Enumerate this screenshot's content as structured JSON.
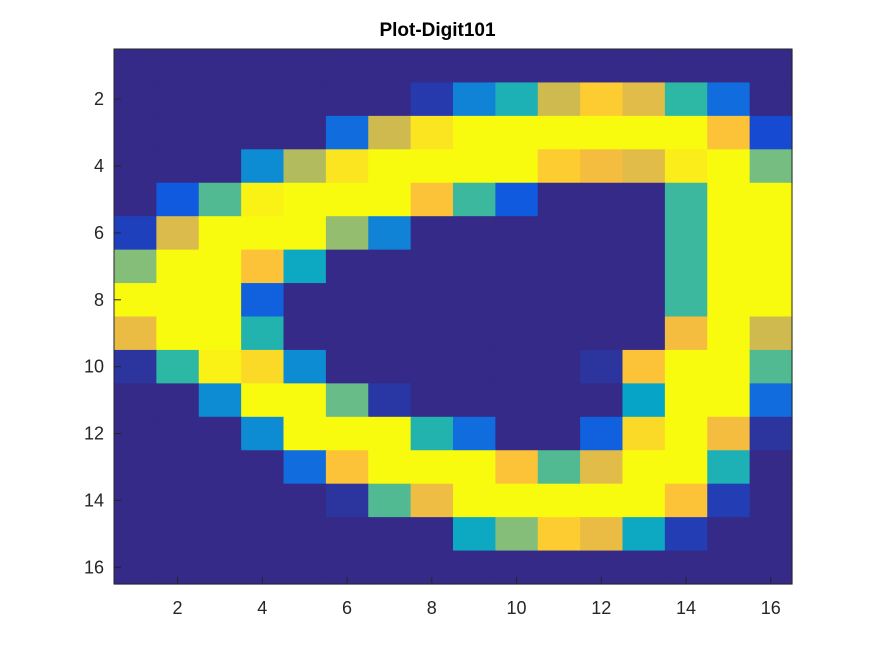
{
  "chart_data": {
    "type": "heatmap",
    "title": "Plot-Digit101",
    "xlabel": "",
    "ylabel": "",
    "rows": 16,
    "cols": 16,
    "x_ticks": [
      "2",
      "4",
      "6",
      "8",
      "10",
      "12",
      "14",
      "16"
    ],
    "y_ticks": [
      "2",
      "4",
      "6",
      "8",
      "10",
      "12",
      "14",
      "16"
    ],
    "xlim": [
      0.5,
      16.5
    ],
    "ylim": [
      0.5,
      16.5
    ],
    "y_direction": "reversed",
    "colormap": "parula",
    "color_range": [
      0,
      1
    ],
    "values": [
      [
        0,
        0,
        0,
        0,
        0,
        0,
        0,
        0,
        0,
        0,
        0,
        0,
        0,
        0,
        0,
        0
      ],
      [
        0,
        0,
        0,
        0,
        0,
        0,
        0,
        0.05,
        0.27,
        0.45,
        0.75,
        0.9,
        0.8,
        0.5,
        0.2,
        0
      ],
      [
        0,
        0,
        0,
        0,
        0,
        0.2,
        0.75,
        0.95,
        1,
        1,
        1,
        1,
        1,
        1,
        0.88,
        0.1
      ],
      [
        0,
        0,
        0,
        0.3,
        0.7,
        0.95,
        1,
        1,
        1,
        1,
        0.9,
        0.85,
        0.8,
        0.97,
        1,
        0.6
      ],
      [
        0,
        0.15,
        0.55,
        0.98,
        1,
        1,
        1,
        0.88,
        0.52,
        0.15,
        0,
        0,
        0,
        0.52,
        1,
        1
      ],
      [
        0.07,
        0.78,
        1,
        1,
        1,
        0.65,
        0.27,
        0,
        0,
        0,
        0,
        0,
        0,
        0.52,
        1,
        1
      ],
      [
        0.62,
        1,
        1,
        0.88,
        0.4,
        0,
        0,
        0,
        0,
        0,
        0,
        0,
        0,
        0.52,
        1,
        1
      ],
      [
        1,
        1,
        1,
        0.17,
        0,
        0,
        0,
        0,
        0,
        0,
        0,
        0,
        0,
        0.52,
        1,
        1
      ],
      [
        0.82,
        1,
        1,
        0.47,
        0,
        0,
        0,
        0,
        0,
        0,
        0,
        0,
        0,
        0.85,
        1,
        0.75
      ],
      [
        0.03,
        0.5,
        0.98,
        0.93,
        0.3,
        0,
        0,
        0,
        0,
        0,
        0,
        0.03,
        0.88,
        1,
        1,
        0.55
      ],
      [
        0,
        0,
        0.3,
        1,
        1,
        0.58,
        0.04,
        0,
        0,
        0,
        0,
        0,
        0.38,
        1,
        1,
        0.2
      ],
      [
        0,
        0,
        0,
        0.3,
        1,
        1,
        1,
        0.47,
        0.2,
        0,
        0,
        0.17,
        0.93,
        1,
        0.85,
        0.03
      ],
      [
        0,
        0,
        0,
        0,
        0.2,
        0.88,
        1,
        1,
        1,
        0.88,
        0.55,
        0.8,
        1,
        1,
        0.45,
        0
      ],
      [
        0,
        0,
        0,
        0,
        0,
        0.03,
        0.55,
        0.83,
        1,
        1,
        1,
        1,
        1,
        0.88,
        0.06,
        0
      ],
      [
        0,
        0,
        0,
        0,
        0,
        0,
        0,
        0,
        0.4,
        0.62,
        0.9,
        0.82,
        0.4,
        0.06,
        0,
        0
      ],
      [
        0,
        0,
        0,
        0,
        0,
        0,
        0,
        0,
        0,
        0,
        0,
        0,
        0,
        0,
        0,
        0
      ]
    ]
  }
}
